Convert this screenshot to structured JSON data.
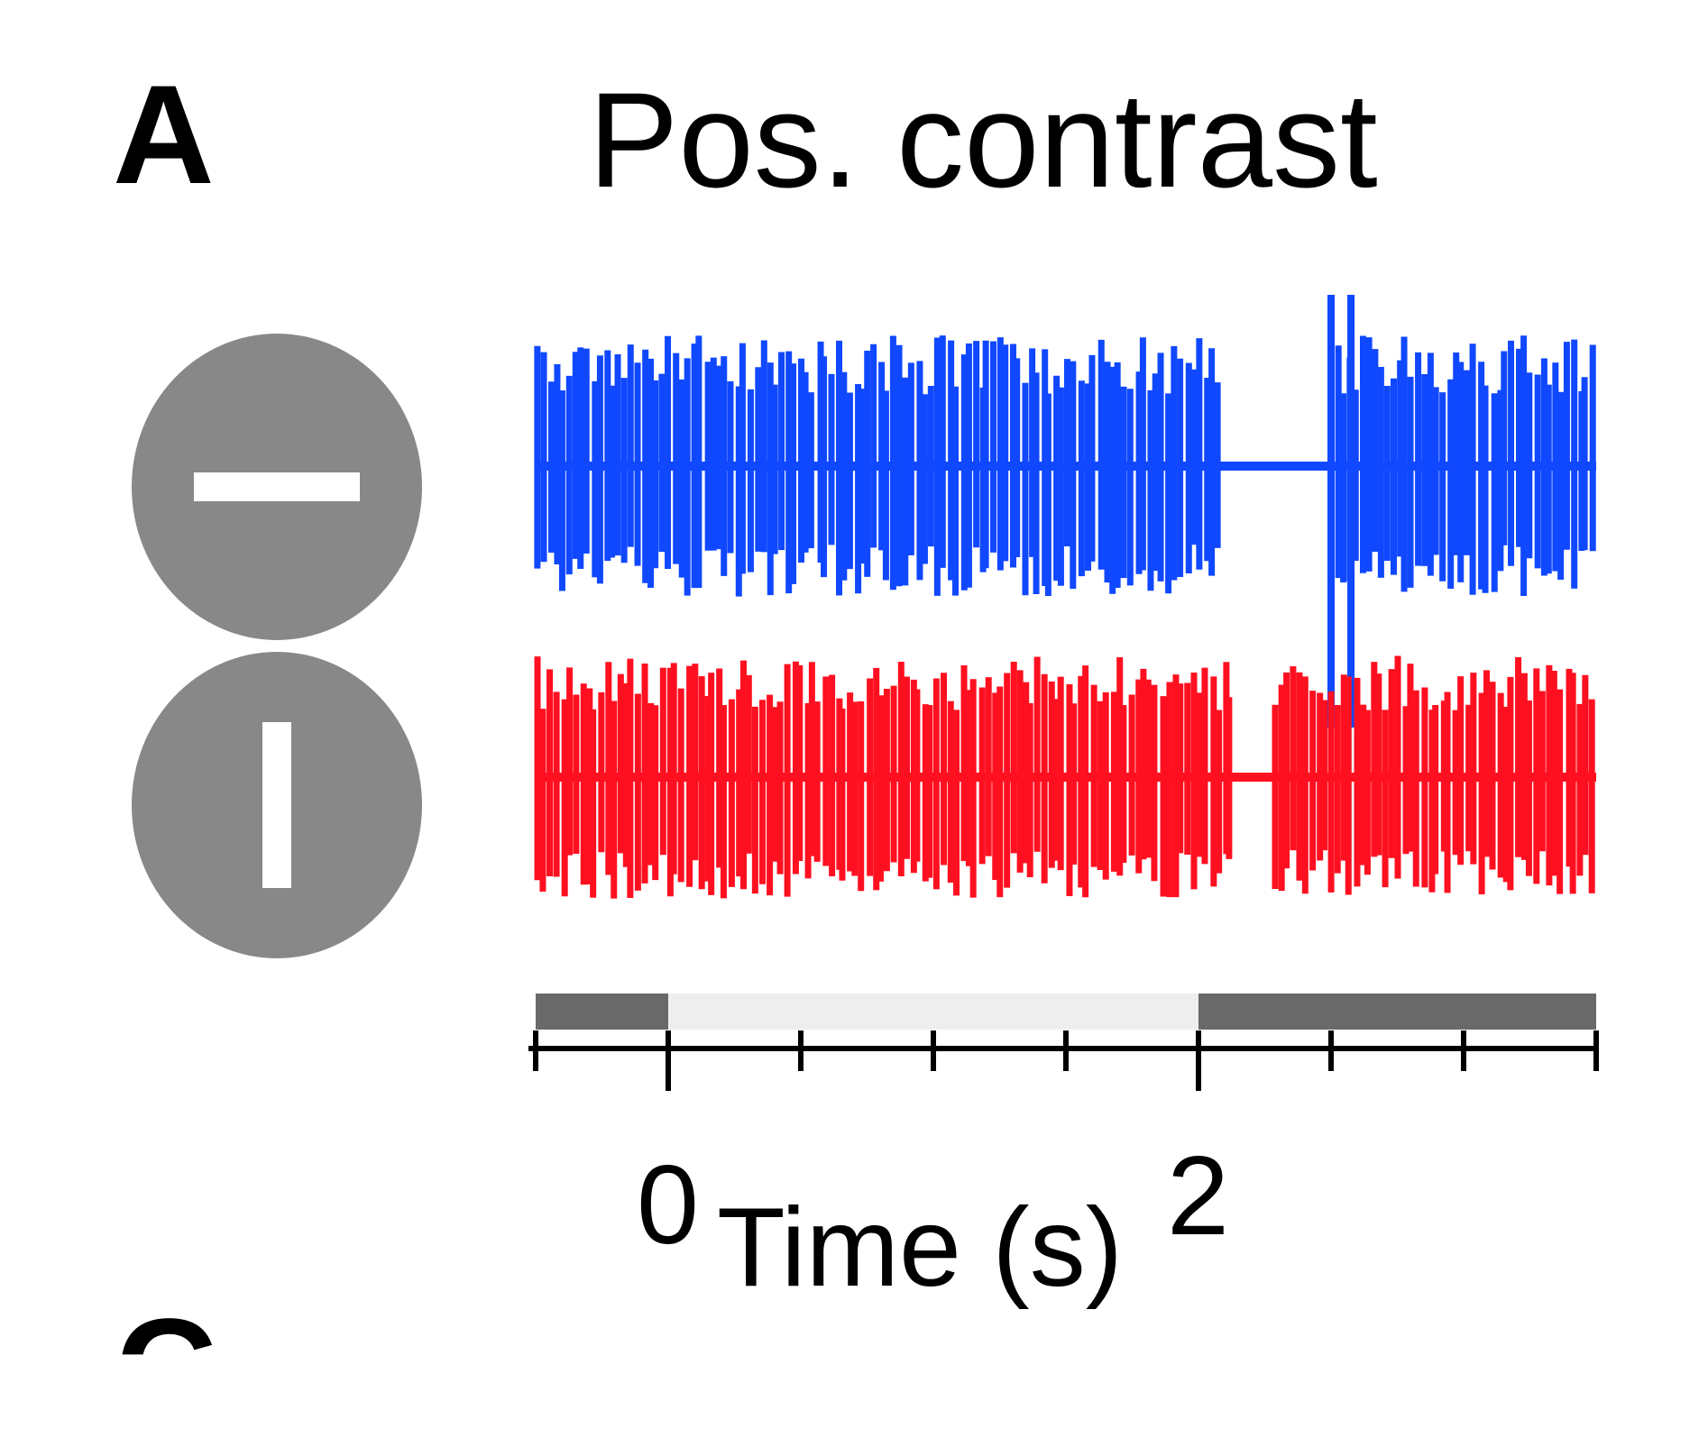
{
  "panel": {
    "letter": "A",
    "next_letter_partial": "C"
  },
  "stimulus_icons": [
    {
      "name": "horizontal-bar-stimulus",
      "orientation": "horizontal",
      "fill": "#888888",
      "bar": "#ffffff"
    },
    {
      "name": "vertical-bar-stimulus",
      "orientation": "vertical",
      "fill": "#888888",
      "bar": "#ffffff"
    }
  ],
  "chart_data": {
    "type": "line",
    "title": "Pos. contrast",
    "xlabel": "Time (s)",
    "ylabel": "",
    "xlim": [
      -1,
      7
    ],
    "x_tick_labels": [
      {
        "x": 0,
        "label": "0"
      },
      {
        "x": 4,
        "label": "2"
      }
    ],
    "x_tick_positions": [
      -1,
      0,
      1,
      2,
      3,
      4,
      5,
      6,
      7
    ],
    "stimulus_bar": [
      {
        "start": -1,
        "end": 0,
        "color": "#696969"
      },
      {
        "start": 0,
        "end": 4,
        "color": "#eeeeee"
      },
      {
        "start": 4,
        "end": 7,
        "color": "#696969"
      }
    ],
    "series": [
      {
        "color": "#1048ff",
        "quiet_periods": [
          [
            4.15,
            5.0
          ]
        ],
        "large_spikes": [
          5.0,
          5.15
        ]
      },
      {
        "color": "#ff1020",
        "quiet_periods": [
          [
            4.25,
            4.55
          ]
        ],
        "large_spikes": []
      }
    ]
  }
}
